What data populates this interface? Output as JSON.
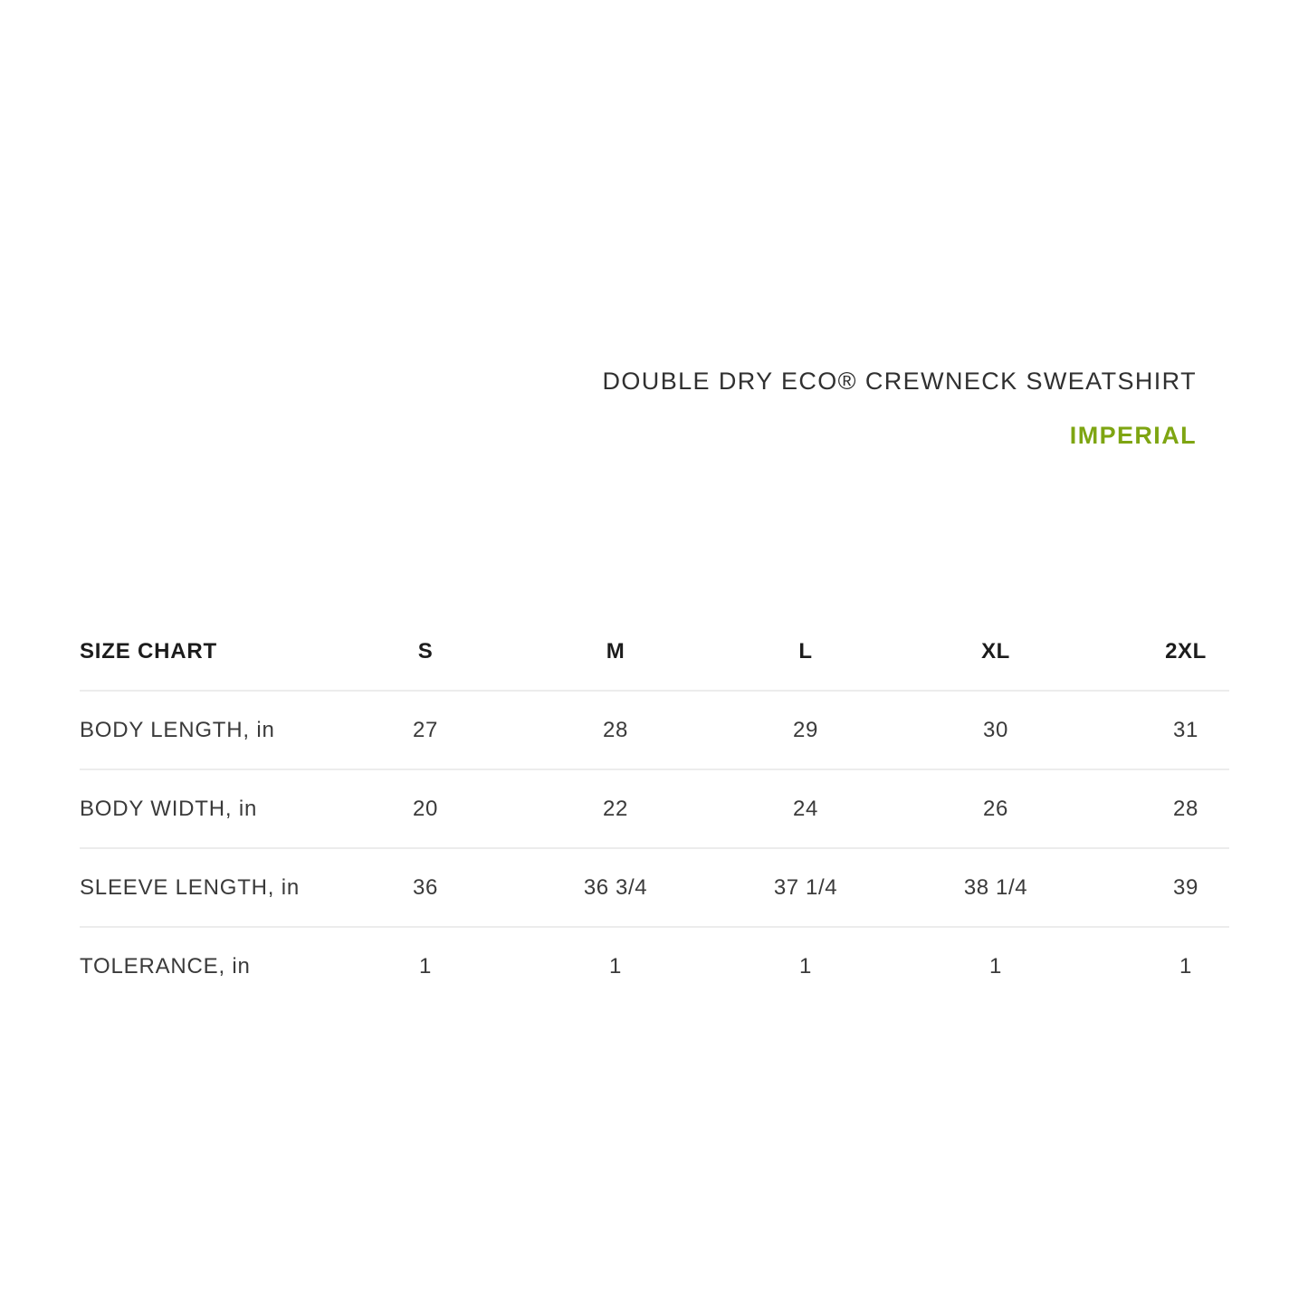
{
  "chart_data": {
    "type": "table",
    "title": "DOUBLE DRY ECO® CREWNECK SWEATSHIRT",
    "unit_system_label": "IMPERIAL",
    "corner_header": "SIZE CHART",
    "size_columns": [
      "S",
      "M",
      "L",
      "XL",
      "2XL"
    ],
    "rows": [
      {
        "label": "BODY LENGTH, in",
        "values": [
          "27",
          "28",
          "29",
          "30",
          "31"
        ]
      },
      {
        "label": "BODY WIDTH, in",
        "values": [
          "20",
          "22",
          "24",
          "26",
          "28"
        ]
      },
      {
        "label": "SLEEVE LENGTH, in",
        "values": [
          "36",
          "36 3/4",
          "37 1/4",
          "38 1/4",
          "39"
        ]
      },
      {
        "label": "TOLERANCE, in",
        "values": [
          "1",
          "1",
          "1",
          "1",
          "1"
        ]
      }
    ],
    "colors": {
      "accent_green": "#7EA512",
      "title_text": "#303030",
      "table_text": "#3A3A3A",
      "header_text": "#1C1C1C",
      "divider": "#ECECEC",
      "background": "#FFFFFF"
    },
    "layout_hints": {
      "grid": "horizontal dividers only, none after last row",
      "value_alignment": "center",
      "header_alignment": "right-aligned title block above table"
    }
  }
}
